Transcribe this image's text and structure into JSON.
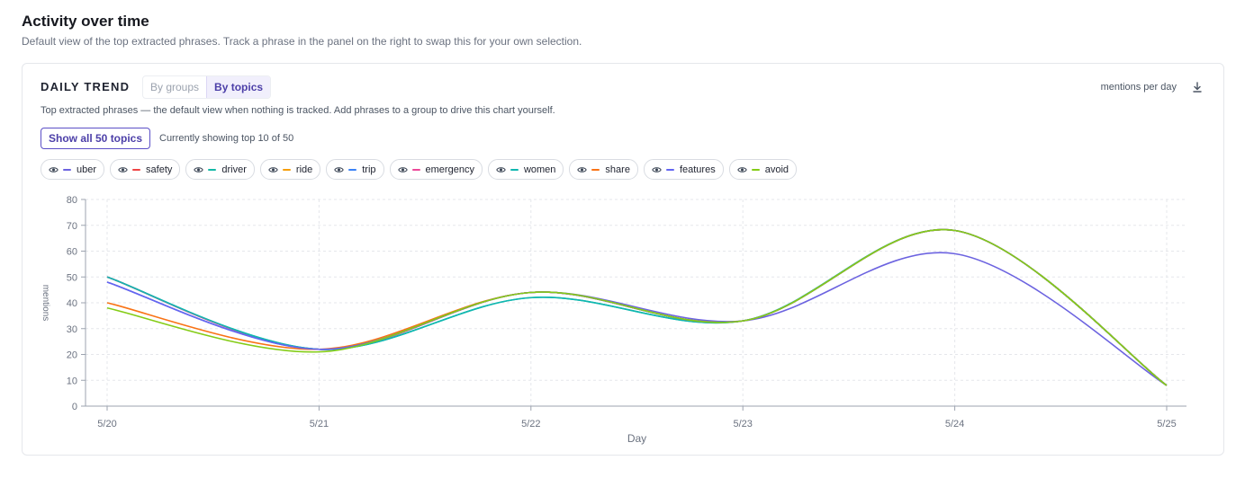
{
  "header": {
    "title": "Activity over time",
    "subtitle": "Default view of the top extracted phrases. Track a phrase in the panel on the right to swap this for your own selection."
  },
  "card": {
    "title": "DAILY TREND",
    "toggle": {
      "groups_label": "By groups",
      "topics_label": "By topics",
      "active": "By topics"
    },
    "unit_label": "mentions per day",
    "download_icon": "download-icon",
    "description": "Top extracted phrases — the default view when nothing is tracked. Add phrases to a group to drive this chart yourself.",
    "show_all_label": "Show all 50 topics",
    "showing_text": "Currently showing top 10 of 50"
  },
  "legend": [
    {
      "name": "uber",
      "color": "#6c63e0"
    },
    {
      "name": "safety",
      "color": "#ef4444"
    },
    {
      "name": "driver",
      "color": "#14b8a6"
    },
    {
      "name": "ride",
      "color": "#f59e0b"
    },
    {
      "name": "trip",
      "color": "#3b82f6"
    },
    {
      "name": "emergency",
      "color": "#ec4899"
    },
    {
      "name": "women",
      "color": "#10b7b0"
    },
    {
      "name": "share",
      "color": "#f97316"
    },
    {
      "name": "features",
      "color": "#6366f1"
    },
    {
      "name": "avoid",
      "color": "#84cc16"
    }
  ],
  "chart_data": {
    "type": "line",
    "x": [
      "5/20",
      "5/21",
      "5/22",
      "5/23",
      "5/24",
      "5/25"
    ],
    "xlabel": "Day",
    "ylabel": "mentions",
    "ylim": [
      0,
      80
    ],
    "yticks": [
      0,
      10,
      20,
      30,
      40,
      50,
      60,
      70,
      80
    ],
    "grid": true,
    "smooth": true,
    "series": [
      {
        "name": "uber",
        "color": "#6c63e0",
        "values": [
          48,
          22,
          44,
          33,
          59,
          8
        ]
      },
      {
        "name": "safety",
        "color": "#ef4444",
        "values": [
          50,
          22,
          44,
          33,
          68,
          8
        ]
      },
      {
        "name": "driver",
        "color": "#14b8a6",
        "values": [
          50,
          22,
          42,
          33,
          68,
          8
        ]
      },
      {
        "name": "ride",
        "color": "#f59e0b",
        "values": [
          50,
          22,
          44,
          33,
          68,
          8
        ]
      },
      {
        "name": "trip",
        "color": "#3b82f6",
        "values": [
          50,
          22,
          44,
          33,
          68,
          8
        ]
      },
      {
        "name": "emergency",
        "color": "#ec4899",
        "values": [
          50,
          22,
          44,
          33,
          68,
          8
        ]
      },
      {
        "name": "women",
        "color": "#10b7b0",
        "values": [
          50,
          22,
          42,
          33,
          68,
          8
        ]
      },
      {
        "name": "share",
        "color": "#f97316",
        "values": [
          40,
          22,
          44,
          33,
          68,
          8
        ]
      },
      {
        "name": "features",
        "color": "#6366f1",
        "values": [
          48,
          22,
          44,
          33,
          68,
          8
        ]
      },
      {
        "name": "avoid",
        "color": "#84cc16",
        "values": [
          38,
          21,
          44,
          33,
          68,
          8
        ]
      }
    ]
  }
}
